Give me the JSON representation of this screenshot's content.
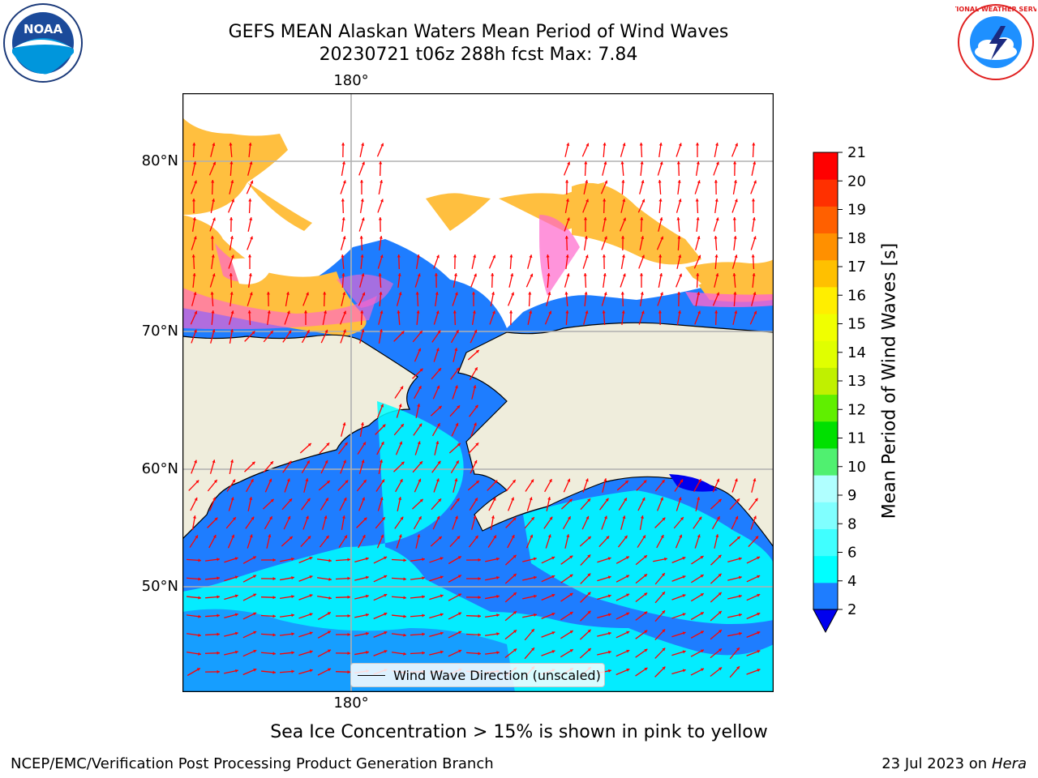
{
  "header": {
    "title_line1": "GEFS MEAN Alaskan Waters Mean Period of Wind Waves",
    "title_line2": "20230721 t06z 288h fcst   Max: 7.84"
  },
  "logos": {
    "left": {
      "icon": "noaa-logo",
      "text": "NOAA"
    },
    "right": {
      "icon": "nws-logo",
      "text": "NATIONAL WEATHER SERVICE"
    }
  },
  "map": {
    "lon_labels": [
      "180°",
      "180°"
    ],
    "lat_labels": [
      "80°N",
      "70°N",
      "60°N",
      "50°N"
    ],
    "legend_label": "Wind Wave Direction (unscaled)",
    "colors": {
      "land": "#efeddc",
      "ocean_low": "#1e7dff",
      "ocean_mid": "#00ffff",
      "ocean_deep": "#0000ee",
      "ice": "#ffbf3f",
      "ice_edge": "#ff66cc",
      "arrow": "#ff0000",
      "grid": "#b0b0b0"
    }
  },
  "colorbar": {
    "label": "Mean Period of Wind Waves [s]",
    "ticks": [
      "2",
      "4",
      "6",
      "8",
      "9",
      "10",
      "11",
      "12",
      "13",
      "14",
      "15",
      "16",
      "17",
      "18",
      "19",
      "20",
      "21"
    ],
    "colors": [
      "#1e7dff",
      "#00ffff",
      "#40ffff",
      "#80ffff",
      "#b0ffff",
      "#50f070",
      "#00e000",
      "#60ef00",
      "#c0f000",
      "#e0ff00",
      "#f0ff00",
      "#ffee00",
      "#ffc000",
      "#ff9000",
      "#ff6000",
      "#ff3000",
      "#ff0000"
    ],
    "under_color": "#0000ee"
  },
  "footer": {
    "note": "Sea Ice Concentration > 15% is shown in pink to yellow",
    "credit_left": "NCEP/EMC/Verification Post Processing Product Generation Branch",
    "credit_right_date": "23 Jul 2023 on ",
    "credit_right_machine": "Hera"
  }
}
